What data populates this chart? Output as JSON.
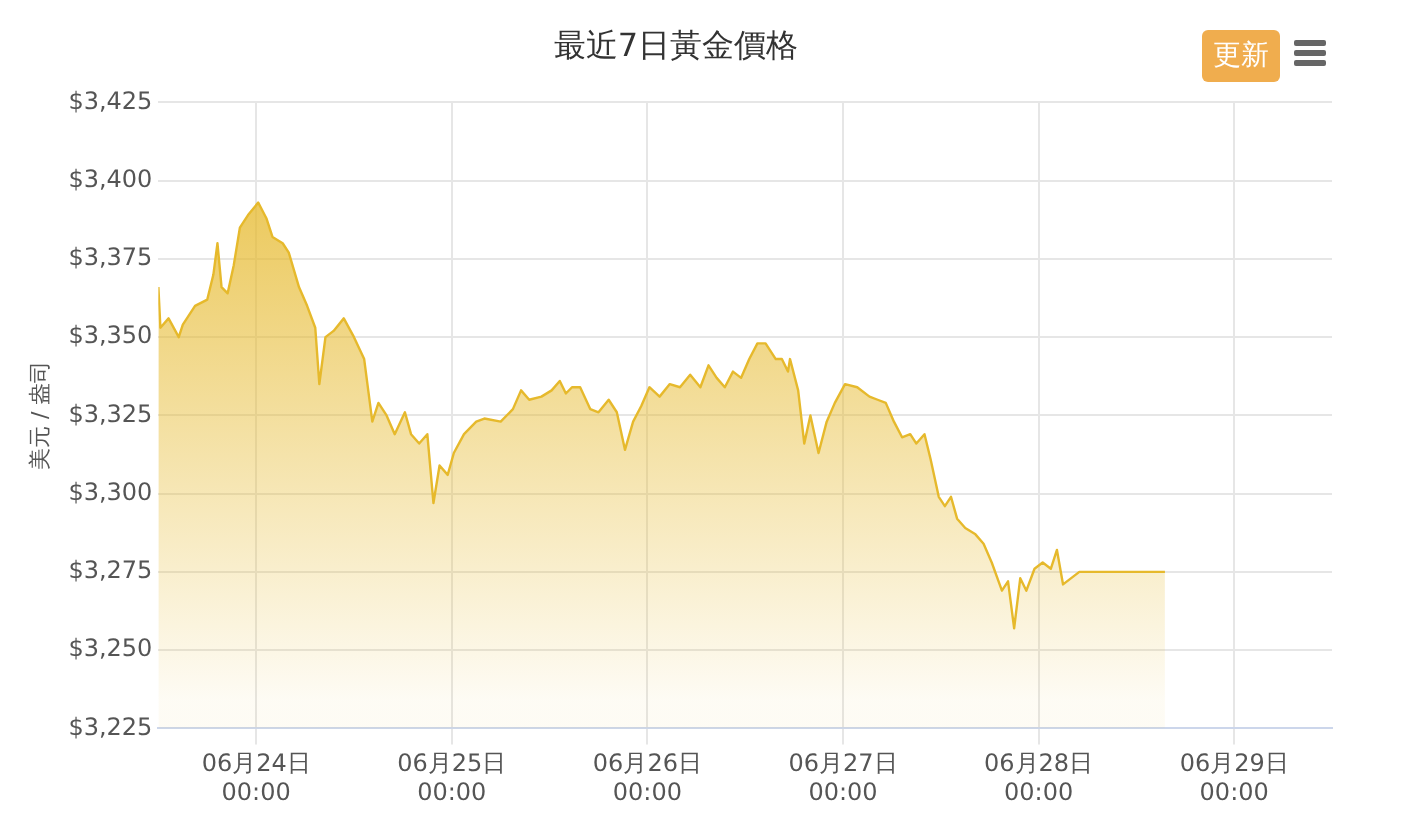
{
  "chart_data": {
    "type": "area",
    "title": "最近7日黃金價格",
    "ylabel": "美元 / 盎司",
    "annotations": [
      "更新"
    ],
    "x": [
      "--06-23T12:00",
      "--06-23T12:15",
      "--06-23T13:15",
      "--06-23T14:30",
      "--06-23T15:00",
      "--06-23T16:30",
      "--06-23T18:00",
      "--06-23T18:45",
      "--06-23T19:15",
      "--06-23T19:45",
      "--06-23T20:30",
      "--06-23T21:15",
      "--06-23T22:00",
      "--06-23T23:00",
      "--06-24T00:15",
      "--06-24T01:15",
      "--06-24T02:00",
      "--06-24T03:15",
      "--06-24T04:00",
      "--06-24T05:15",
      "--06-24T06:15",
      "--06-24T07:15",
      "--06-24T07:45",
      "--06-24T08:30",
      "--06-24T09:30",
      "--06-24T10:45",
      "--06-24T12:00",
      "--06-24T13:15",
      "--06-24T14:15",
      "--06-24T15:00",
      "--06-24T16:00",
      "--06-24T17:00",
      "--06-24T18:15",
      "--06-24T19:00",
      "--06-24T20:00",
      "--06-24T21:00",
      "--06-24T21:45",
      "--06-24T22:30",
      "--06-24T23:30",
      "--06-25T00:15",
      "--06-25T01:30",
      "--06-25T03:00",
      "--06-25T04:00",
      "--06-25T06:00",
      "--06-25T07:30",
      "--06-25T08:30",
      "--06-25T09:30",
      "--06-25T11:00",
      "--06-25T12:15",
      "--06-25T13:15",
      "--06-25T14:00",
      "--06-25T14:45",
      "--06-25T15:45",
      "--06-25T17:00",
      "--06-25T18:00",
      "--06-25T19:15",
      "--06-25T20:15",
      "--06-25T21:15",
      "--06-25T22:15",
      "--06-25T23:15",
      "--06-26T00:15",
      "--06-26T01:30",
      "--06-26T02:45",
      "--06-26T04:00",
      "--06-26T05:15",
      "--06-26T06:30",
      "--06-26T07:30",
      "--06-26T08:30",
      "--06-26T09:30",
      "--06-26T10:30",
      "--06-26T11:30",
      "--06-26T12:30",
      "--06-26T13:30",
      "--06-26T14:30",
      "--06-26T15:45",
      "--06-26T16:30",
      "--06-26T17:15",
      "--06-26T17:30",
      "--06-26T18:30",
      "--06-26T19:15",
      "--06-26T20:00",
      "--06-26T21:00",
      "--06-26T22:00",
      "--06-26T23:00",
      "--06-27T00:15",
      "--06-27T01:45",
      "--06-27T03:15",
      "--06-27T04:15",
      "--06-27T05:15",
      "--06-27T06:15",
      "--06-27T07:15",
      "--06-27T08:15",
      "--06-27T09:00",
      "--06-27T10:00",
      "--06-27T10:45",
      "--06-27T11:45",
      "--06-27T12:30",
      "--06-27T13:15",
      "--06-27T14:00",
      "--06-27T15:00",
      "--06-27T16:15",
      "--06-27T17:15",
      "--06-27T18:15",
      "--06-27T19:30",
      "--06-27T20:15",
      "--06-27T21:00",
      "--06-27T21:45",
      "--06-27T22:30",
      "--06-27T23:30",
      "--06-28T00:30",
      "--06-28T01:30",
      "--06-28T02:15",
      "--06-28T03:00",
      "--06-28T04:00",
      "--06-28T05:00",
      "--06-28T15:30"
    ],
    "series": [
      {
        "color": "#e6b92c",
        "values": [
          3366,
          3353,
          3356,
          3350,
          3354,
          3360,
          3362,
          3370,
          3380,
          3366,
          3364,
          3373,
          3385,
          3389,
          3393,
          3388,
          3382,
          3380,
          3377,
          3366,
          3360,
          3353,
          3335,
          3350,
          3352,
          3356,
          3350,
          3343,
          3323,
          3329,
          3325,
          3319,
          3326,
          3319,
          3316,
          3319,
          3297,
          3309,
          3306,
          3313,
          3319,
          3323,
          3324,
          3323,
          3327,
          3333,
          3330,
          3331,
          3333,
          3336,
          3332,
          3334,
          3334,
          3327,
          3326,
          3330,
          3326,
          3314,
          3323,
          3328,
          3334,
          3331,
          3335,
          3334,
          3338,
          3334,
          3341,
          3337,
          3334,
          3339,
          3337,
          3343,
          3348,
          3348,
          3343,
          3343,
          3339,
          3343,
          3333,
          3316,
          3325,
          3313,
          3323,
          3329,
          3335,
          3334,
          3331,
          3330,
          3329,
          3323,
          3318,
          3319,
          3316,
          3319,
          3311,
          3299,
          3296,
          3299,
          3292,
          3289,
          3287,
          3284,
          3278,
          3269,
          3272,
          3257,
          3273,
          3269,
          3276,
          3278,
          3276,
          3282,
          3271,
          3273,
          3275,
          3275
        ]
      }
    ],
    "xlim": [
      "--06-23T12:00",
      "--06-29T12:00"
    ],
    "xticks": [
      {
        "value": "--06-24T00:00",
        "label": "06月24日\n00:00"
      },
      {
        "value": "--06-25T00:00",
        "label": "06月25日\n00:00"
      },
      {
        "value": "--06-26T00:00",
        "label": "06月26日\n00:00"
      },
      {
        "value": "--06-27T00:00",
        "label": "06月27日\n00:00"
      },
      {
        "value": "--06-28T00:00",
        "label": "06月28日\n00:00"
      },
      {
        "value": "--06-29T00:00",
        "label": "06月29日\n00:00"
      }
    ],
    "ylim": [
      3225,
      3425
    ],
    "yticks": [
      {
        "value": 3225,
        "label": "$3,225"
      },
      {
        "value": 3250,
        "label": "$3,250"
      },
      {
        "value": 3275,
        "label": "$3,275"
      },
      {
        "value": 3300,
        "label": "$3,300"
      },
      {
        "value": 3325,
        "label": "$3,325"
      },
      {
        "value": 3350,
        "label": "$3,350"
      },
      {
        "value": 3375,
        "label": "$3,375"
      },
      {
        "value": 3400,
        "label": "$3,400"
      },
      {
        "value": 3425,
        "label": "$3,425"
      }
    ],
    "grid": true,
    "legend": false,
    "marker": "none",
    "line_style": "solid"
  }
}
